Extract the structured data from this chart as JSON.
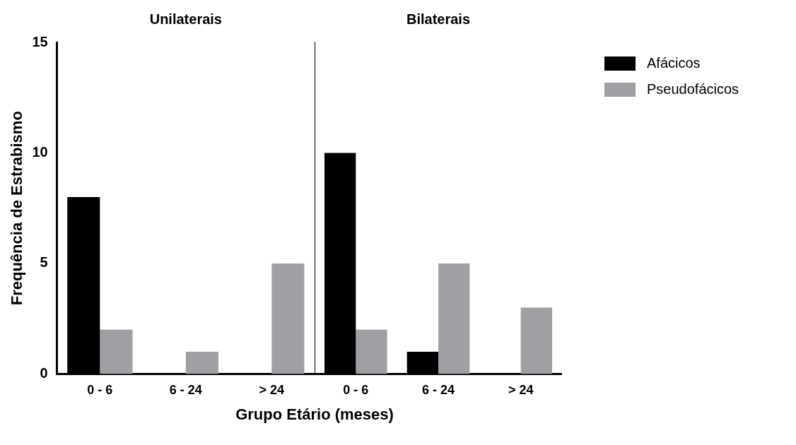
{
  "chart_data": [
    {
      "type": "bar",
      "title": "Unilaterais",
      "ylabel": "Frequência de Estrabismo",
      "xlabel": "Grupo Etário (meses)",
      "categories": [
        "0 - 6",
        "6 - 24",
        "> 24"
      ],
      "ylim": [
        0,
        15
      ],
      "yticks": [
        0,
        5,
        10,
        15
      ],
      "grid": false,
      "legend": false,
      "series": [
        {
          "color": "#000000",
          "values": [
            8,
            0,
            0
          ]
        },
        {
          "color": "#a0a0a4",
          "values": [
            2,
            1,
            5
          ]
        }
      ]
    },
    {
      "type": "bar",
      "title": "Bilaterais",
      "categories": [
        "0 - 6",
        "6 - 24",
        "> 24"
      ],
      "ylim": [
        0,
        15
      ],
      "yticks": [
        0,
        5,
        10,
        15
      ],
      "grid": false,
      "legend": "right",
      "tick_labels": "x",
      "series": [
        {
          "name": "Afácicos",
          "color": "#000000",
          "values": [
            10,
            1,
            0
          ]
        },
        {
          "name": "Pseudofácicos",
          "color": "#a0a0a4",
          "values": [
            2,
            5,
            3
          ]
        }
      ]
    }
  ]
}
